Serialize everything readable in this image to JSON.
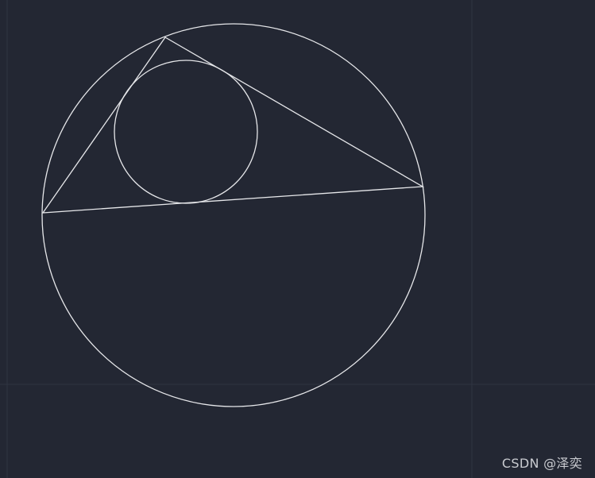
{
  "watermark": "CSDN @泽奕",
  "colors": {
    "background": "#232733",
    "grid": "#2f3442",
    "stroke": "#e6e7ea",
    "watermark": "#c9cbd0"
  }
}
